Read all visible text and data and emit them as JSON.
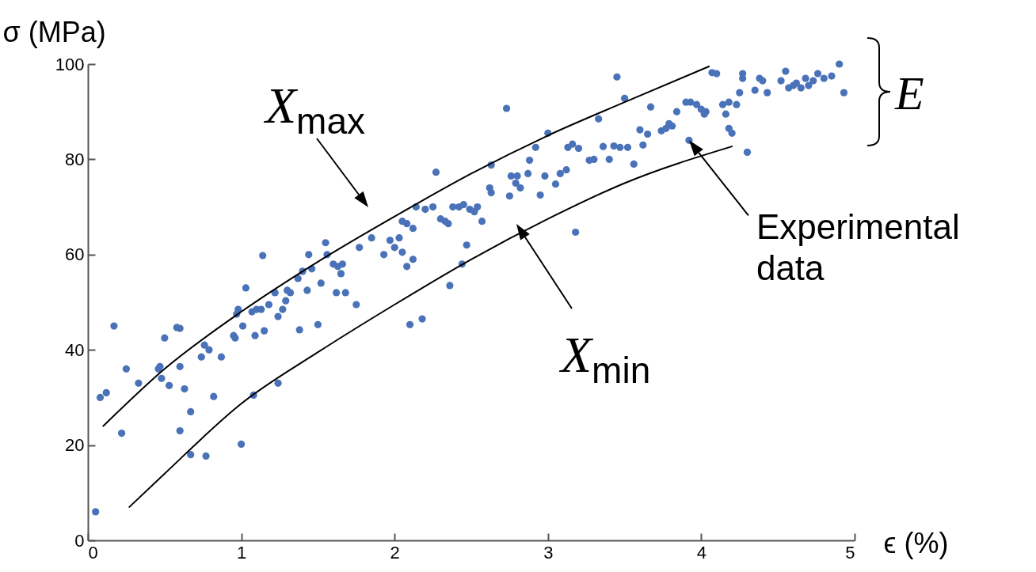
{
  "chart_data": {
    "type": "scatter",
    "xlabel": "ϵ (%)",
    "ylabel": "σ (MPa)",
    "xlim": [
      0,
      5
    ],
    "ylim": [
      0,
      100
    ],
    "xticks": [
      0,
      1,
      2,
      3,
      4,
      5
    ],
    "yticks": [
      0,
      20,
      40,
      60,
      80,
      100
    ],
    "series": [
      {
        "color": "#4a72b8",
        "x": [
          0.05,
          0.08,
          0.12,
          0.17,
          0.22,
          0.25,
          0.33,
          0.46,
          0.47,
          0.48,
          0.5,
          0.53,
          0.58,
          0.6,
          0.6,
          0.6,
          0.63,
          0.67,
          0.67,
          0.74,
          0.76,
          0.77,
          0.79,
          0.82,
          0.87,
          0.95,
          0.96,
          0.97,
          0.98,
          1.0,
          1.01,
          1.03,
          1.07,
          1.08,
          1.09,
          1.1,
          1.13,
          1.14,
          1.15,
          1.18,
          1.22,
          1.24,
          1.24,
          1.27,
          1.29,
          1.3,
          1.32,
          1.37,
          1.38,
          1.4,
          1.43,
          1.44,
          1.46,
          1.5,
          1.52,
          1.55,
          1.56,
          1.6,
          1.62,
          1.63,
          1.65,
          1.66,
          1.68,
          1.75,
          1.77,
          1.85,
          1.93,
          1.97,
          2.0,
          2.03,
          2.05,
          2.05,
          2.08,
          2.08,
          2.1,
          2.12,
          2.12,
          2.14,
          2.18,
          2.2,
          2.25,
          2.27,
          2.3,
          2.33,
          2.35,
          2.36,
          2.38,
          2.42,
          2.44,
          2.45,
          2.47,
          2.49,
          2.52,
          2.54,
          2.57,
          2.62,
          2.63,
          2.63,
          2.73,
          2.75,
          2.76,
          2.79,
          2.8,
          2.82,
          2.87,
          2.88,
          2.92,
          2.95,
          2.98,
          3.0,
          3.05,
          3.08,
          3.12,
          3.13,
          3.16,
          3.18,
          3.2,
          3.27,
          3.3,
          3.33,
          3.36,
          3.4,
          3.43,
          3.45,
          3.47,
          3.5,
          3.52,
          3.56,
          3.6,
          3.62,
          3.65,
          3.67,
          3.74,
          3.77,
          3.79,
          3.81,
          3.84,
          3.9,
          3.92,
          3.93,
          3.97,
          4.0,
          4.02,
          4.03,
          4.07,
          4.1,
          4.14,
          4.16,
          4.18,
          4.18,
          4.2,
          4.23,
          4.25,
          4.27,
          4.27,
          4.3,
          4.35,
          4.38,
          4.4,
          4.43,
          4.52,
          4.55,
          4.57,
          4.6,
          4.62,
          4.65,
          4.68,
          4.7,
          4.73,
          4.76,
          4.8,
          4.85,
          4.9,
          4.93
        ],
        "values": [
          6,
          30,
          31,
          45,
          22.5,
          36,
          33,
          36,
          36.5,
          34,
          42.5,
          32.5,
          44.7,
          44.5,
          36.5,
          23,
          31.8,
          27,
          18,
          38.5,
          41,
          17.7,
          40,
          30.2,
          38.5,
          43,
          42.5,
          47.5,
          48.5,
          20.2,
          45,
          53,
          48,
          30.5,
          43,
          48.5,
          48.5,
          59.8,
          44,
          49.5,
          52,
          47,
          33,
          48.5,
          50.3,
          52.5,
          52,
          55,
          44.2,
          56.5,
          52.5,
          60,
          57,
          45.3,
          54,
          62.5,
          60,
          58,
          52,
          57.5,
          56,
          58,
          52,
          49.5,
          61.5,
          63.5,
          60,
          63,
          61.5,
          63.5,
          60.5,
          67,
          57.5,
          66.5,
          45.3,
          59,
          65.5,
          70,
          46.5,
          69.5,
          70,
          77.3,
          67.5,
          67,
          66.5,
          53.5,
          70,
          70,
          58,
          70.5,
          62,
          69.5,
          69,
          70,
          67,
          74,
          78.8,
          73,
          90.7,
          72.3,
          76.5,
          75,
          76.5,
          74,
          77,
          79.8,
          82.5,
          72.5,
          76.5,
          85.5,
          74.8,
          77,
          77.8,
          82.5,
          83.2,
          64.7,
          82.3,
          79.8,
          80,
          88.5,
          82.7,
          80,
          82.8,
          97.3,
          82.5,
          92.8,
          82.5,
          79,
          86.2,
          83,
          85.3,
          91,
          86,
          86.5,
          87.5,
          87,
          90,
          92,
          84,
          92,
          91.5,
          90.5,
          89.5,
          90,
          98.2,
          98,
          91.5,
          89.5,
          92,
          86.5,
          85.5,
          91.5,
          94,
          98,
          97,
          81.5,
          94.5,
          97,
          96.5,
          94,
          96.5,
          98.5,
          95,
          95.5,
          96,
          95,
          97,
          95.5,
          96.5,
          98,
          97,
          97.5,
          100,
          94
        ]
      },
      {
        "type": "line",
        "color": "#000000",
        "x": [
          0.1,
          0.5,
          1,
          1.5,
          2,
          2.5,
          3,
          3.5,
          4.05
        ],
        "values": [
          24,
          36,
          48,
          58.5,
          68,
          77,
          85,
          92,
          99.5
        ]
      },
      {
        "type": "line",
        "color": "#000000",
        "x": [
          0.27,
          0.5,
          1,
          1.5,
          2,
          2.5,
          3,
          3.5,
          4.2
        ],
        "values": [
          7,
          14,
          28.7,
          39.5,
          49.5,
          59,
          67.5,
          75,
          82.7
        ]
      }
    ],
    "annotations": [
      "X$_{max}$",
      "X$_{min}$",
      {
        "text": "Experimental data",
        "x": 3.92,
        "y": 84
      },
      "E"
    ]
  }
}
